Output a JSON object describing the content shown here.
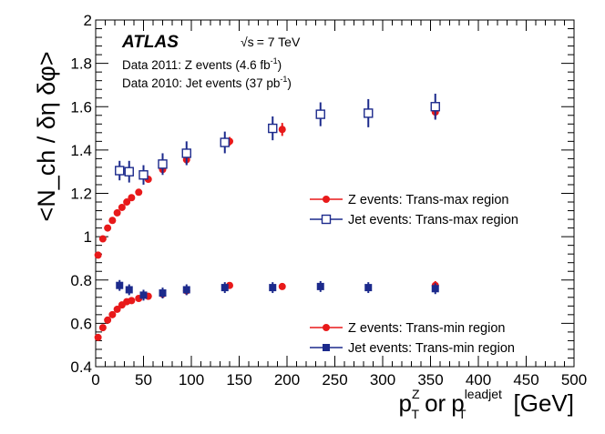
{
  "chart_data": {
    "type": "scatter",
    "xlim": [
      0,
      500
    ],
    "ylim": [
      0.4,
      2.0
    ],
    "x_ticks": [
      "0",
      "50",
      "100",
      "150",
      "200",
      "250",
      "300",
      "350",
      "400",
      "450",
      "500"
    ],
    "y_ticks": [
      "0.4",
      "0.6",
      "0.8",
      "1",
      "1.2",
      "1.4",
      "1.6",
      "1.8",
      "2"
    ],
    "ylabel": "<N_ch / δη δφ>",
    "xlabel": {
      "p1": "p",
      "z_sup": "Z",
      "T_sub": "T",
      "or": "or",
      "p2": "p",
      "leadjet_sup": "leadjet",
      "T2_sub": "T",
      "unit": "[GeV]"
    },
    "annotations": {
      "atlas": "ATLAS",
      "energy_root": "√s",
      "energy": "= 7 TeV",
      "data_z": "Data 2011: Z events (4.6 fb",
      "data_z_exp": "-1",
      "data_z_end": ")",
      "data_jet": "Data 2010: Jet events (37 pb",
      "data_jet_exp": "-1",
      "data_jet_end": ")"
    },
    "legend_upper": [
      {
        "label": "Z events: Trans-max region",
        "color": "#e8191a",
        "marker": "circle"
      },
      {
        "label": "Jet events: Trans-max region",
        "color": "#1c2a8c",
        "marker": "open-square"
      }
    ],
    "legend_lower": [
      {
        "label": "Z events: Trans-min region",
        "color": "#e8191a",
        "marker": "circle"
      },
      {
        "label": "Jet events: Trans-min region",
        "color": "#1c2a8c",
        "marker": "filled-square"
      }
    ],
    "series": [
      {
        "name": "Z events: Trans-max region",
        "color": "#e8191a",
        "marker": "circle",
        "x": [
          2.5,
          7.5,
          12.5,
          17.5,
          22.5,
          27.5,
          32.5,
          37.5,
          45,
          55,
          70,
          95,
          140,
          195,
          355
        ],
        "y": [
          0.915,
          0.99,
          1.04,
          1.075,
          1.11,
          1.135,
          1.16,
          1.18,
          1.205,
          1.265,
          1.31,
          1.355,
          1.44,
          1.495,
          1.575
        ],
        "yerr": [
          0,
          0,
          0,
          0,
          0,
          0,
          0,
          0,
          0,
          0,
          0.015,
          0.02,
          0.02,
          0.03,
          0.03
        ]
      },
      {
        "name": "Jet events: Trans-max region",
        "color": "#1c2a8c",
        "marker": "open-square",
        "x": [
          25,
          35,
          50,
          70,
          95,
          135,
          185,
          235,
          285,
          355
        ],
        "y": [
          1.305,
          1.3,
          1.285,
          1.335,
          1.385,
          1.435,
          1.5,
          1.565,
          1.57,
          1.6
        ],
        "yerr": [
          0.045,
          0.05,
          0.045,
          0.05,
          0.055,
          0.05,
          0.055,
          0.055,
          0.065,
          0.06
        ]
      },
      {
        "name": "Z events: Trans-min region",
        "color": "#e8191a",
        "marker": "circle",
        "x": [
          2.5,
          7.5,
          12.5,
          17.5,
          22.5,
          27.5,
          32.5,
          37.5,
          45,
          55,
          70,
          95,
          140,
          195,
          355
        ],
        "y": [
          0.535,
          0.58,
          0.615,
          0.64,
          0.665,
          0.685,
          0.7,
          0.705,
          0.715,
          0.725,
          0.735,
          0.75,
          0.775,
          0.77,
          0.775
        ],
        "yerr": [
          0,
          0,
          0,
          0,
          0,
          0,
          0,
          0,
          0,
          0,
          0.01,
          0.015,
          0.015,
          0.015,
          0.02
        ]
      },
      {
        "name": "Jet events: Trans-min region",
        "color": "#1c2a8c",
        "marker": "filled-square",
        "x": [
          25,
          35,
          50,
          70,
          95,
          135,
          185,
          235,
          285,
          355
        ],
        "y": [
          0.775,
          0.755,
          0.73,
          0.74,
          0.755,
          0.765,
          0.765,
          0.77,
          0.765,
          0.76
        ],
        "yerr": [
          0.025,
          0.025,
          0.025,
          0.025,
          0.025,
          0.025,
          0.025,
          0.025,
          0.025,
          0.025
        ]
      }
    ]
  }
}
